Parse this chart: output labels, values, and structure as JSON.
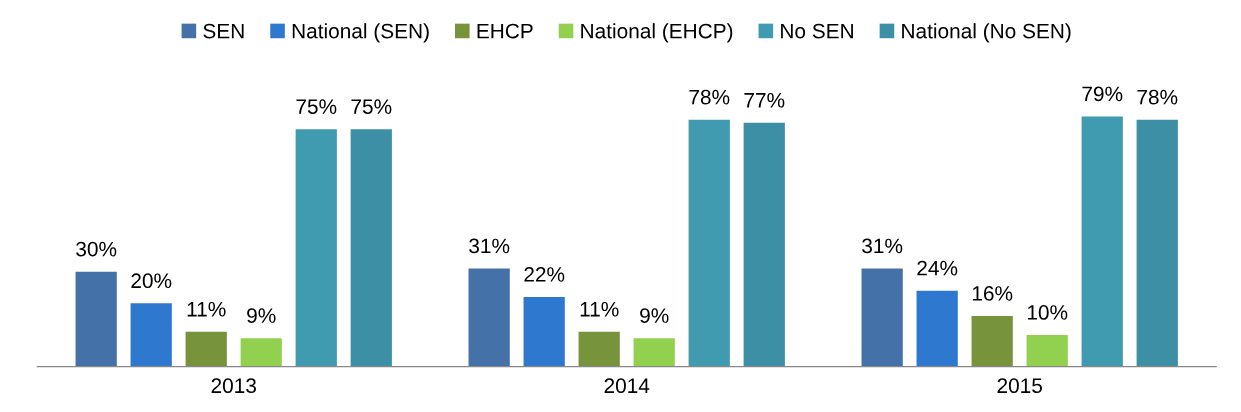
{
  "chart_data": {
    "type": "bar",
    "categories": [
      "2013",
      "2014",
      "2015"
    ],
    "legend": "top",
    "grid": false,
    "series": [
      {
        "name": "SEN",
        "color": "#4472a8",
        "values": [
          30,
          31,
          31
        ],
        "value_labels": [
          "30%",
          "31%",
          "31%"
        ]
      },
      {
        "name": "National (SEN)",
        "color": "#2f78d0",
        "values": [
          20,
          22,
          24
        ],
        "value_labels": [
          "20%",
          "22%",
          "24%"
        ]
      },
      {
        "name": "EHCP",
        "color": "#77933c",
        "values": [
          11,
          11,
          16
        ],
        "value_labels": [
          "11%",
          "11%",
          "16%"
        ]
      },
      {
        "name": "National (EHCP)",
        "color": "#92d050",
        "values": [
          9,
          9,
          10
        ],
        "value_labels": [
          "9%",
          "9%",
          "10%"
        ]
      },
      {
        "name": "No SEN",
        "color": "#409bb0",
        "values": [
          75,
          78,
          79
        ],
        "value_labels": [
          "75%",
          "78%",
          "79%"
        ]
      },
      {
        "name": "National (No SEN)",
        "color": "#3d8fa6",
        "values": [
          75,
          77,
          78
        ],
        "value_labels": [
          "75%",
          "77%",
          "78%"
        ]
      }
    ]
  }
}
